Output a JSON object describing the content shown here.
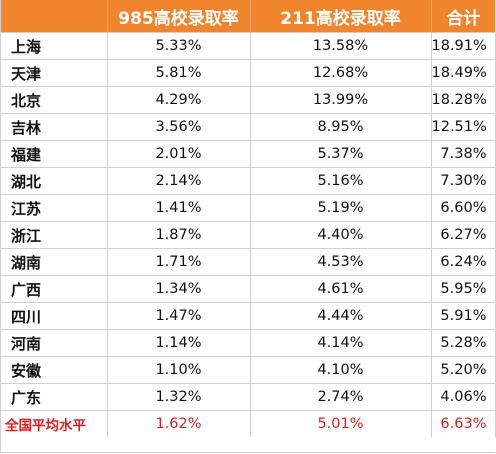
{
  "chart_data": {
    "type": "table",
    "columns": [
      "",
      "985高校录取率",
      "211高校录取率",
      "合计"
    ],
    "rows": [
      {
        "region": "上海",
        "values": [
          "5.33%",
          "13.58%",
          "18.91%"
        ]
      },
      {
        "region": "天津",
        "values": [
          "5.81%",
          "12.68%",
          "18.49%"
        ]
      },
      {
        "region": "北京",
        "values": [
          "4.29%",
          "13.99%",
          "18.28%"
        ]
      },
      {
        "region": "吉林",
        "values": [
          "3.56%",
          "8.95%",
          "12.51%"
        ]
      },
      {
        "region": "福建",
        "values": [
          "2.01%",
          "5.37%",
          "7.38%"
        ]
      },
      {
        "region": "湖北",
        "values": [
          "2.14%",
          "5.16%",
          "7.30%"
        ]
      },
      {
        "region": "江苏",
        "values": [
          "1.41%",
          "5.19%",
          "6.60%"
        ]
      },
      {
        "region": "浙江",
        "values": [
          "1.87%",
          "4.40%",
          "6.27%"
        ]
      },
      {
        "region": "湖南",
        "values": [
          "1.71%",
          "4.53%",
          "6.24%"
        ]
      },
      {
        "region": "广西",
        "values": [
          "1.34%",
          "4.61%",
          "5.95%"
        ]
      },
      {
        "region": "四川",
        "values": [
          "1.47%",
          "4.44%",
          "5.91%"
        ]
      },
      {
        "region": "河南",
        "values": [
          "1.14%",
          "4.14%",
          "5.28%"
        ]
      },
      {
        "region": "安徽",
        "values": [
          "1.10%",
          "4.10%",
          "5.20%"
        ]
      },
      {
        "region": "广东",
        "values": [
          "1.32%",
          "2.74%",
          "4.06%"
        ]
      }
    ],
    "average_row": {
      "region": "全国平均水平",
      "values": [
        "1.62%",
        "5.01%",
        "6.63%"
      ]
    }
  },
  "colors": {
    "header_background": "#f0852d",
    "header_text": "#ffffff",
    "average_row_text": "#e11d1d",
    "grid_line": "#cfcfcf"
  }
}
